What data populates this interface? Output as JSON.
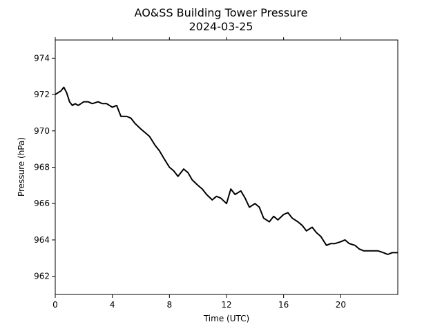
{
  "chart_data": {
    "type": "line",
    "title": "AO&SS Building Tower Pressure",
    "subtitle": "2024-03-25",
    "xlabel": "Time (UTC)",
    "ylabel": "Pressure (hPa)",
    "xlim": [
      0,
      24
    ],
    "ylim": [
      961,
      975
    ],
    "x_ticks": [
      0,
      4,
      8,
      12,
      16,
      20
    ],
    "x_tick_labels": [
      "0",
      "4",
      "8",
      "12",
      "16",
      "20"
    ],
    "y_ticks": [
      962,
      964,
      966,
      968,
      970,
      972,
      974
    ],
    "y_tick_labels": [
      "962",
      "964",
      "966",
      "968",
      "970",
      "972",
      "974"
    ],
    "grid": false,
    "line_color": "#000000",
    "series": [
      {
        "x": [
          0.0,
          0.2,
          0.4,
          0.6,
          0.8,
          1.0,
          1.2,
          1.4,
          1.6,
          1.8,
          2.0,
          2.3,
          2.6,
          3.0,
          3.3,
          3.6,
          4.0,
          4.3,
          4.6,
          5.0,
          5.3,
          5.6,
          6.0,
          6.3,
          6.6,
          7.0,
          7.3,
          7.6,
          8.0,
          8.3,
          8.6,
          9.0,
          9.3,
          9.6,
          10.0,
          10.3,
          10.6,
          11.0,
          11.3,
          11.6,
          12.0,
          12.3,
          12.6,
          13.0,
          13.3,
          13.6,
          14.0,
          14.3,
          14.6,
          15.0,
          15.3,
          15.6,
          16.0,
          16.3,
          16.6,
          17.0,
          17.3,
          17.6,
          18.0,
          18.3,
          18.6,
          19.0,
          19.3,
          19.6,
          20.0,
          20.3,
          20.6,
          21.0,
          21.3,
          21.6,
          22.0,
          22.3,
          22.6,
          23.0,
          23.3,
          23.6,
          24.0
        ],
        "values": [
          972.0,
          972.1,
          972.2,
          972.4,
          972.1,
          971.6,
          971.4,
          971.5,
          971.4,
          971.5,
          971.6,
          971.6,
          971.5,
          971.6,
          971.5,
          971.5,
          971.3,
          971.4,
          970.8,
          970.8,
          970.7,
          970.4,
          970.1,
          969.9,
          969.7,
          969.2,
          968.9,
          968.5,
          968.0,
          967.8,
          967.5,
          967.9,
          967.7,
          967.3,
          967.0,
          966.8,
          966.5,
          966.2,
          966.4,
          966.3,
          966.0,
          966.8,
          966.5,
          966.7,
          966.3,
          965.8,
          966.0,
          965.8,
          965.2,
          965.0,
          965.3,
          965.1,
          965.4,
          965.5,
          965.2,
          965.0,
          964.8,
          964.5,
          964.7,
          964.4,
          964.2,
          963.7,
          963.8,
          963.8,
          963.9,
          964.0,
          963.8,
          963.7,
          963.5,
          963.4,
          963.4,
          963.4,
          963.4,
          963.3,
          963.2,
          963.3,
          963.3
        ]
      }
    ]
  }
}
